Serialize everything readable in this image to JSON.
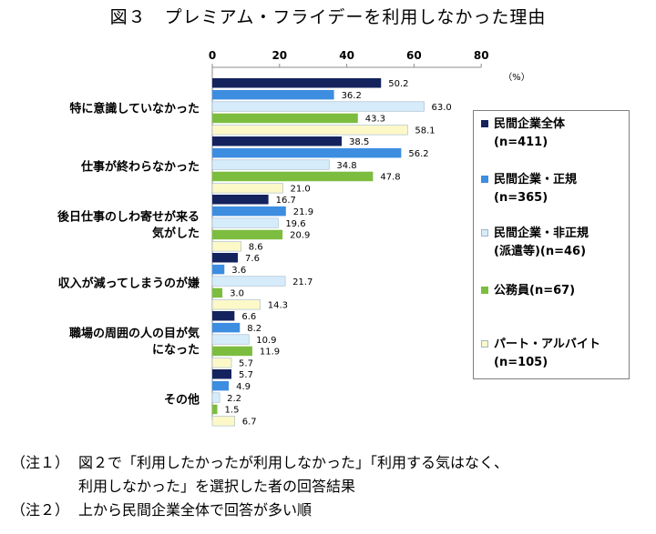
{
  "title": "図３　プレミアム・フライデーを利用しなかった理由",
  "chart_data": {
    "type": "bar",
    "orientation": "horizontal",
    "title": "",
    "unit_label": "（%）",
    "xlim": [
      0,
      80
    ],
    "xticks": [
      "0",
      "20",
      "40",
      "60",
      "80"
    ],
    "categories": [
      "特に意識していなかった",
      "仕事が終わらなかった",
      "後日仕事のしわ寄せが来る\n気がした",
      "収入が減ってしまうのが嫌",
      "職場の周囲の人の目が気\nになった",
      "その他"
    ],
    "series": [
      {
        "name": "民間企業全体\n(n=411)",
        "color": "#14235e",
        "values": [
          50.2,
          38.5,
          16.7,
          7.6,
          6.6,
          5.7
        ]
      },
      {
        "name": "民間企業・正規\n(n=365)",
        "color": "#3d8de0",
        "values": [
          36.2,
          56.2,
          21.9,
          3.6,
          8.2,
          4.9
        ]
      },
      {
        "name": "民間企業・非正規\n(派遣等)(n=46)",
        "color": "#d6ecfb",
        "values": [
          63.0,
          34.8,
          19.6,
          21.7,
          10.9,
          2.2
        ]
      },
      {
        "name": "公務員(n=67)",
        "color": "#7cbd3f",
        "values": [
          43.3,
          47.8,
          20.9,
          3.0,
          11.9,
          1.5
        ]
      },
      {
        "name": "パート・アルバイト\n(n=105)",
        "color": "#fdf8c8",
        "values": [
          58.1,
          21.0,
          8.6,
          14.3,
          5.7,
          6.7
        ]
      }
    ],
    "labels": [
      [
        "50.2",
        "38.5",
        "16.7",
        "7.6",
        "6.6",
        "5.7"
      ],
      [
        "36.2",
        "56.2",
        "21.9",
        "3.6",
        "8.2",
        "4.9"
      ],
      [
        "63.0",
        "34.8",
        "19.6",
        "21.7",
        "10.9",
        "2.2"
      ],
      [
        "43.3",
        "47.8",
        "20.9",
        "3.0",
        "11.9",
        "1.5"
      ],
      [
        "58.1",
        "21.0",
        "8.6",
        "14.3",
        "5.7",
        "6.7"
      ]
    ],
    "grid": false,
    "legend_position": "right"
  },
  "notes": [
    {
      "label": "（注１）",
      "text": "図２で「利用したかったが利用しなかった」「利用する気はなく、"
    },
    {
      "label": "",
      "text": "利用しなかった」を選択した者の回答結果"
    },
    {
      "label": "（注２）",
      "text": "上から民間企業全体で回答が多い順"
    }
  ]
}
